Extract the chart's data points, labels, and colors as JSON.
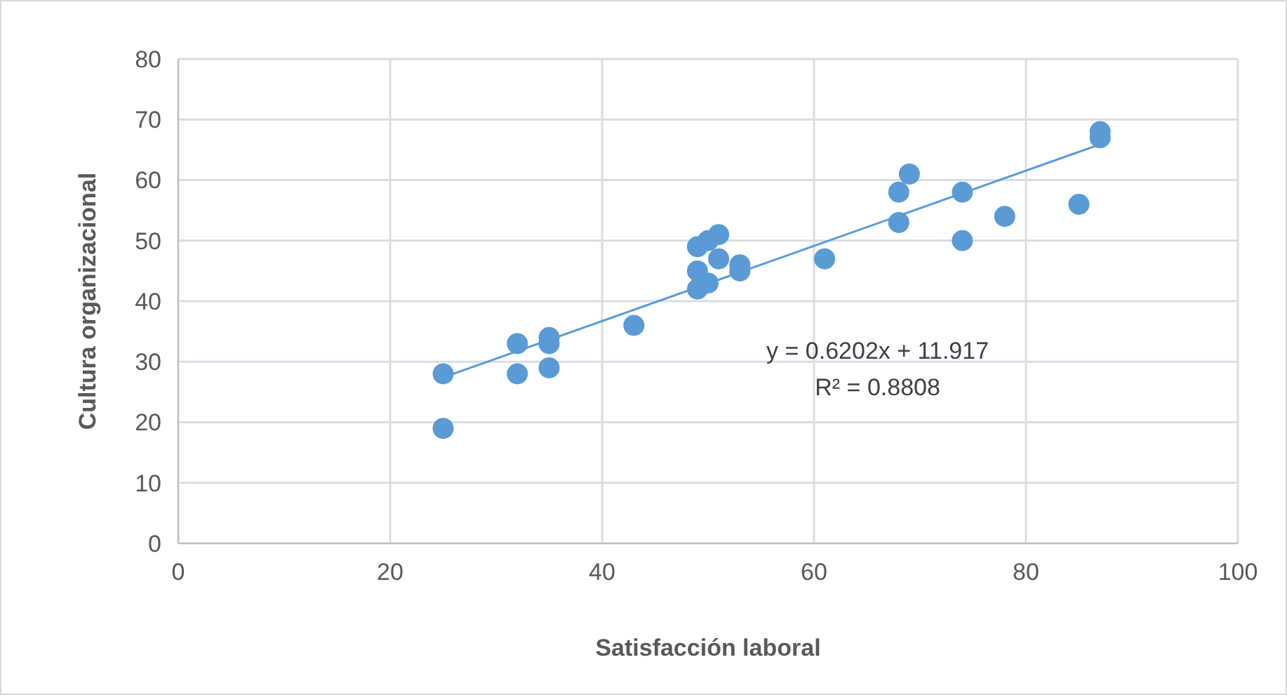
{
  "chart_data": {
    "type": "scatter",
    "xlabel": "Satisfacción laboral",
    "ylabel": "Cultura organizacional",
    "xlim": [
      0,
      100
    ],
    "xticks": [
      0,
      20,
      40,
      60,
      80,
      100
    ],
    "ylim": [
      0,
      80
    ],
    "yticks": [
      0,
      10,
      20,
      30,
      40,
      50,
      60,
      70,
      80
    ],
    "grid": true,
    "marker": "circle",
    "annotations": [
      "y = 0.6202x + 11.917",
      "R² = 0.8808"
    ],
    "series": [
      {
        "color": "#5b9bd5",
        "x": [
          25,
          25,
          32,
          32,
          35,
          35,
          35,
          43,
          49,
          49,
          49,
          50,
          50,
          51,
          51,
          53,
          53,
          61,
          68,
          68,
          69,
          74,
          74,
          78,
          85,
          87,
          87
        ],
        "values": [
          28,
          19,
          33,
          28,
          34,
          33,
          29,
          36,
          49,
          45,
          42,
          50,
          43,
          51,
          47,
          46,
          45,
          47,
          58,
          53,
          61,
          58,
          50,
          54,
          56,
          68,
          67
        ]
      },
      {
        "type": "line",
        "color": "#5b9bd5",
        "marker": "none",
        "x": [
          25,
          87
        ],
        "values": [
          27.4,
          65.9
        ]
      }
    ]
  }
}
